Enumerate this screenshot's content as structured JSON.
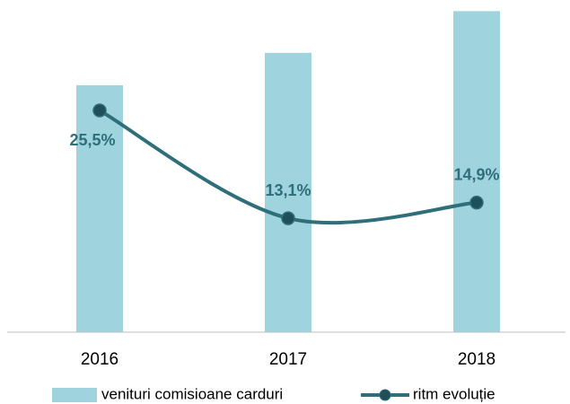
{
  "chart_data": {
    "type": "bar",
    "categories": [
      "2016",
      "2017",
      "2018"
    ],
    "series": [
      {
        "name": "venituri comisioane carduri",
        "type": "bar",
        "color": "#9fd3de",
        "values": [
          100,
          113.1,
          130
        ]
      },
      {
        "name": "ritm evoluție",
        "type": "line",
        "axis": "y2",
        "color": "#2e6f7a",
        "values": [
          25.5,
          13.1,
          14.9
        ],
        "value_labels": [
          "25,5%",
          "13,1%",
          "14,9%"
        ]
      }
    ],
    "ylim": [
      0,
      134.5
    ],
    "y2lim": [
      0,
      38.2
    ],
    "legend": "bottom"
  }
}
